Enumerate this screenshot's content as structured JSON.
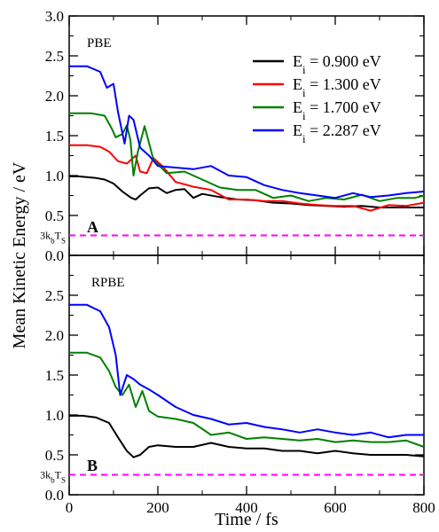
{
  "chart_data": [
    {
      "type": "line",
      "panel_label": "A",
      "method_label": "PBE",
      "ylabel": "Mean Kinetic Energy / eV",
      "xlabel": "",
      "xlim": [
        0,
        800
      ],
      "ylim": [
        0,
        3
      ],
      "x_ticks": [
        "0",
        "200",
        "400",
        "600",
        "800"
      ],
      "y_ticks": [
        "0.0",
        "0.5",
        "1.0",
        "1.5",
        "2.0",
        "2.5",
        "3.0"
      ],
      "legend_position": "top-right",
      "reference_line": {
        "label_main": "3k",
        "label_sub1": "b",
        "label_mid": "T",
        "label_sub2": "S",
        "value": 0.25,
        "color": "#ff00ff",
        "style": "dashed"
      },
      "series": [
        {
          "name_main": "E",
          "name_sub": "i",
          "name_rest": " = 0.900 eV",
          "color": "#000000",
          "points": [
            [
              0,
              0.99
            ],
            [
              20,
              0.99
            ],
            [
              40,
              0.98
            ],
            [
              60,
              0.97
            ],
            [
              80,
              0.95
            ],
            [
              100,
              0.9
            ],
            [
              120,
              0.8
            ],
            [
              140,
              0.72
            ],
            [
              150,
              0.7
            ],
            [
              160,
              0.75
            ],
            [
              180,
              0.84
            ],
            [
              200,
              0.85
            ],
            [
              220,
              0.78
            ],
            [
              240,
              0.82
            ],
            [
              260,
              0.83
            ],
            [
              280,
              0.72
            ],
            [
              300,
              0.77
            ],
            [
              340,
              0.73
            ],
            [
              380,
              0.7
            ],
            [
              420,
              0.69
            ],
            [
              460,
              0.66
            ],
            [
              500,
              0.65
            ],
            [
              540,
              0.63
            ],
            [
              580,
              0.62
            ],
            [
              620,
              0.61
            ],
            [
              660,
              0.62
            ],
            [
              700,
              0.6
            ],
            [
              740,
              0.6
            ],
            [
              780,
              0.6
            ],
            [
              800,
              0.6
            ]
          ]
        },
        {
          "name_main": "E",
          "name_sub": "i",
          "name_rest": " = 1.300 eV",
          "color": "#ff0000",
          "points": [
            [
              0,
              1.38
            ],
            [
              40,
              1.38
            ],
            [
              70,
              1.36
            ],
            [
              90,
              1.3
            ],
            [
              110,
              1.18
            ],
            [
              130,
              1.15
            ],
            [
              150,
              1.25
            ],
            [
              160,
              1.05
            ],
            [
              175,
              1.03
            ],
            [
              190,
              1.22
            ],
            [
              210,
              1.12
            ],
            [
              240,
              0.92
            ],
            [
              280,
              0.86
            ],
            [
              320,
              0.82
            ],
            [
              360,
              0.7
            ],
            [
              400,
              0.7
            ],
            [
              440,
              0.68
            ],
            [
              480,
              0.68
            ],
            [
              520,
              0.65
            ],
            [
              560,
              0.63
            ],
            [
              600,
              0.62
            ],
            [
              640,
              0.62
            ],
            [
              680,
              0.56
            ],
            [
              720,
              0.63
            ],
            [
              760,
              0.62
            ],
            [
              800,
              0.66
            ]
          ]
        },
        {
          "name_main": "E",
          "name_sub": "i",
          "name_rest": " = 1.700 eV",
          "color": "#008000",
          "points": [
            [
              0,
              1.78
            ],
            [
              50,
              1.78
            ],
            [
              80,
              1.75
            ],
            [
              95,
              1.6
            ],
            [
              105,
              1.48
            ],
            [
              120,
              1.52
            ],
            [
              130,
              1.63
            ],
            [
              138,
              1.45
            ],
            [
              145,
              1.0
            ],
            [
              155,
              1.3
            ],
            [
              170,
              1.62
            ],
            [
              190,
              1.2
            ],
            [
              220,
              1.03
            ],
            [
              260,
              1.05
            ],
            [
              300,
              0.95
            ],
            [
              340,
              0.85
            ],
            [
              380,
              0.82
            ],
            [
              420,
              0.82
            ],
            [
              460,
              0.72
            ],
            [
              500,
              0.75
            ],
            [
              540,
              0.68
            ],
            [
              580,
              0.72
            ],
            [
              620,
              0.7
            ],
            [
              660,
              0.76
            ],
            [
              700,
              0.68
            ],
            [
              740,
              0.72
            ],
            [
              780,
              0.72
            ],
            [
              800,
              0.75
            ]
          ]
        },
        {
          "name_main": "E",
          "name_sub": "i",
          "name_rest": " = 2.287 eV",
          "color": "#0000ff",
          "points": [
            [
              0,
              2.37
            ],
            [
              40,
              2.37
            ],
            [
              70,
              2.3
            ],
            [
              85,
              2.1
            ],
            [
              100,
              2.15
            ],
            [
              110,
              1.8
            ],
            [
              125,
              1.4
            ],
            [
              135,
              1.75
            ],
            [
              145,
              1.7
            ],
            [
              160,
              1.35
            ],
            [
              180,
              1.25
            ],
            [
              200,
              1.12
            ],
            [
              240,
              1.1
            ],
            [
              280,
              1.08
            ],
            [
              320,
              1.12
            ],
            [
              360,
              1.0
            ],
            [
              400,
              0.98
            ],
            [
              440,
              0.88
            ],
            [
              480,
              0.82
            ],
            [
              520,
              0.78
            ],
            [
              560,
              0.75
            ],
            [
              600,
              0.72
            ],
            [
              640,
              0.78
            ],
            [
              680,
              0.73
            ],
            [
              720,
              0.75
            ],
            [
              760,
              0.78
            ],
            [
              800,
              0.8
            ]
          ]
        }
      ]
    },
    {
      "type": "line",
      "panel_label": "B",
      "method_label": "RPBE",
      "xlabel": "Time / fs",
      "xlim": [
        0,
        800
      ],
      "ylim": [
        0,
        3
      ],
      "x_ticks": [
        "0",
        "200",
        "400",
        "600",
        "800"
      ],
      "y_ticks": [
        "0.0",
        "0.5",
        "1.0",
        "1.5",
        "2.0",
        "2.5"
      ],
      "reference_line": {
        "label_main": "3k",
        "label_sub1": "b",
        "label_mid": "T",
        "label_sub2": "S",
        "value": 0.25,
        "color": "#ff00ff",
        "style": "dashed"
      },
      "series": [
        {
          "color": "#000000",
          "points": [
            [
              0,
              0.99
            ],
            [
              30,
              0.99
            ],
            [
              60,
              0.97
            ],
            [
              90,
              0.9
            ],
            [
              110,
              0.72
            ],
            [
              130,
              0.55
            ],
            [
              145,
              0.47
            ],
            [
              160,
              0.5
            ],
            [
              180,
              0.6
            ],
            [
              200,
              0.62
            ],
            [
              240,
              0.6
            ],
            [
              280,
              0.6
            ],
            [
              320,
              0.65
            ],
            [
              360,
              0.6
            ],
            [
              400,
              0.58
            ],
            [
              440,
              0.58
            ],
            [
              480,
              0.55
            ],
            [
              520,
              0.55
            ],
            [
              560,
              0.52
            ],
            [
              600,
              0.55
            ],
            [
              640,
              0.52
            ],
            [
              680,
              0.5
            ],
            [
              720,
              0.5
            ],
            [
              760,
              0.5
            ],
            [
              800,
              0.48
            ]
          ]
        },
        {
          "color": "#008000",
          "points": [
            [
              0,
              1.78
            ],
            [
              40,
              1.78
            ],
            [
              70,
              1.72
            ],
            [
              90,
              1.55
            ],
            [
              105,
              1.35
            ],
            [
              120,
              1.25
            ],
            [
              135,
              1.38
            ],
            [
              150,
              1.1
            ],
            [
              165,
              1.3
            ],
            [
              180,
              1.05
            ],
            [
              200,
              0.98
            ],
            [
              240,
              0.95
            ],
            [
              280,
              0.9
            ],
            [
              320,
              0.75
            ],
            [
              360,
              0.78
            ],
            [
              400,
              0.7
            ],
            [
              440,
              0.72
            ],
            [
              480,
              0.7
            ],
            [
              520,
              0.68
            ],
            [
              560,
              0.7
            ],
            [
              600,
              0.66
            ],
            [
              640,
              0.68
            ],
            [
              680,
              0.66
            ],
            [
              720,
              0.66
            ],
            [
              760,
              0.68
            ],
            [
              800,
              0.6
            ]
          ]
        },
        {
          "color": "#0000ff",
          "points": [
            [
              0,
              2.38
            ],
            [
              40,
              2.38
            ],
            [
              70,
              2.3
            ],
            [
              90,
              2.1
            ],
            [
              105,
              1.75
            ],
            [
              115,
              1.25
            ],
            [
              130,
              1.5
            ],
            [
              145,
              1.45
            ],
            [
              160,
              1.38
            ],
            [
              180,
              1.32
            ],
            [
              200,
              1.25
            ],
            [
              240,
              1.1
            ],
            [
              280,
              1.0
            ],
            [
              320,
              0.95
            ],
            [
              360,
              0.88
            ],
            [
              400,
              0.9
            ],
            [
              440,
              0.85
            ],
            [
              480,
              0.82
            ],
            [
              520,
              0.78
            ],
            [
              560,
              0.82
            ],
            [
              600,
              0.78
            ],
            [
              640,
              0.75
            ],
            [
              680,
              0.78
            ],
            [
              720,
              0.72
            ],
            [
              760,
              0.75
            ],
            [
              800,
              0.75
            ]
          ]
        }
      ]
    }
  ]
}
